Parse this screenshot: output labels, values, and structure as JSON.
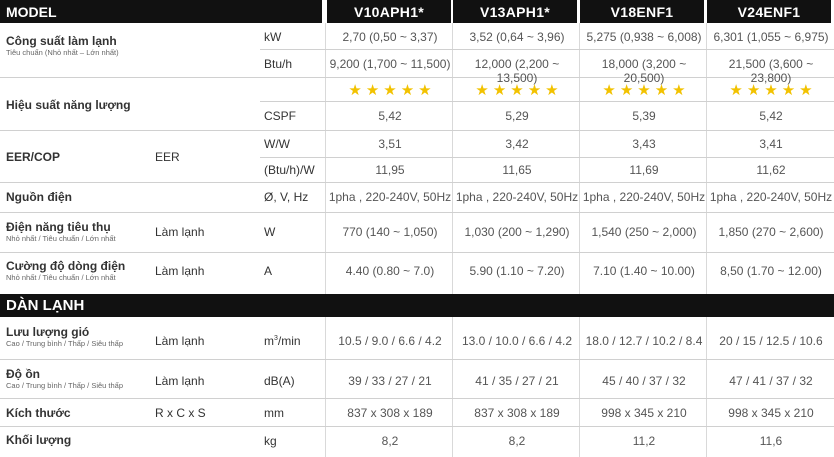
{
  "header": {
    "model_label": "MODEL",
    "models": [
      "V10APH1*",
      "V13APH1*",
      "V18ENF1",
      "V24ENF1"
    ]
  },
  "section2_title": "DÀN LẠNH",
  "star_color": "#f2c200",
  "rows": {
    "cap_label": "Công suất làm lạnh",
    "cap_sub": "Tiêu chuẩn (Nhỏ nhất – Lớn nhất)",
    "cap_kw_unit": "kW",
    "cap_kw": [
      "2,70 (0,50 ~ 3,37)",
      "3,52 (0,64 ~ 3,96)",
      "5,275 (0,938 ~ 6,008)",
      "6,301 (1,055 ~ 6,975)"
    ],
    "cap_btu_unit": "Btu/h",
    "cap_btu": [
      "9,200 (1,700 ~ 11,500)",
      "12,000 (2,200 ~ 13,500)",
      "18,000 (3,200 ~ 20,500)",
      "21,500 (3,600 ~ 23,800)"
    ],
    "eff_label": "Hiệu suất năng lượng",
    "eff_stars": [
      5,
      5,
      5,
      5
    ],
    "cspf_unit": "CSPF",
    "cspf": [
      "5,42",
      "5,29",
      "5,39",
      "5,42"
    ],
    "eer_label": "EER/COP",
    "eer_mid": "EER",
    "eer_ww_unit": "W/W",
    "eer_ww": [
      "3,51",
      "3,42",
      "3,43",
      "3,41"
    ],
    "eer_btu_unit": "(Btu/h)/W",
    "eer_btu": [
      "11,95",
      "11,65",
      "11,69",
      "11,62"
    ],
    "power_label": "Nguồn điện",
    "power_unit": "Ø, V, Hz",
    "power": [
      "1pha , 220-240V, 50Hz",
      "1pha , 220-240V, 50Hz",
      "1pha , 220-240V, 50Hz",
      "1pha , 220-240V, 50Hz"
    ],
    "consume_label": "Điện năng tiêu thụ",
    "consume_sub": "Nhỏ nhất / Tiêu chuẩn / Lớn nhất",
    "consume_mid": "Làm lạnh",
    "consume_unit": "W",
    "consume": [
      "770 (140 ~ 1,050)",
      "1,030 (200 ~ 1,290)",
      "1,540 (250 ~ 2,000)",
      "1,850 (270 ~ 2,600)"
    ],
    "current_label": "Cường độ dòng điện",
    "current_sub": "Nhỏ nhất / Tiêu chuẩn / Lớn nhất",
    "current_mid": "Làm lạnh",
    "current_unit": "A",
    "current": [
      "4.40 (0.80 ~ 7.0)",
      "5.90 (1.10 ~ 7.20)",
      "7.10 (1.40 ~ 10.00)",
      "8,50 (1.70 ~ 12.00)"
    ],
    "airflow_label": "Lưu lượng gió",
    "airflow_sub": "Cao / Trung bình / Thấp / Siêu thấp",
    "airflow_mid": "Làm lạnh",
    "airflow_unit_base": "m",
    "airflow_unit_sup": "3",
    "airflow_unit_tail": "/min",
    "airflow": [
      "10.5 / 9.0 / 6.6 / 4.2",
      "13.0 / 10.0 / 6.6 / 4.2",
      "18.0 / 12.7 / 10.2 / 8.4",
      "20 / 15 / 12.5 / 10.6"
    ],
    "noise_label": "Độ ồn",
    "noise_sub": "Cao / Trung bình / Thấp / Siêu thấp",
    "noise_mid": "Làm lạnh",
    "noise_unit": "dB(A)",
    "noise": [
      "39 / 33 / 27 / 21",
      "41 / 35 / 27 / 21",
      "45 / 40 / 37 / 32",
      "47 / 41 / 37 / 32"
    ],
    "size_label": "Kích thước",
    "size_mid": "R x C x S",
    "size_unit": "mm",
    "size": [
      "837 x 308  x 189",
      "837 x 308 x 189",
      "998 x 345 x 210",
      "998 x 345 x 210"
    ],
    "weight_label": "Khối lượng",
    "weight_unit": "kg",
    "weight": [
      "8,2",
      "8,2",
      "11,2",
      "11,6"
    ]
  }
}
